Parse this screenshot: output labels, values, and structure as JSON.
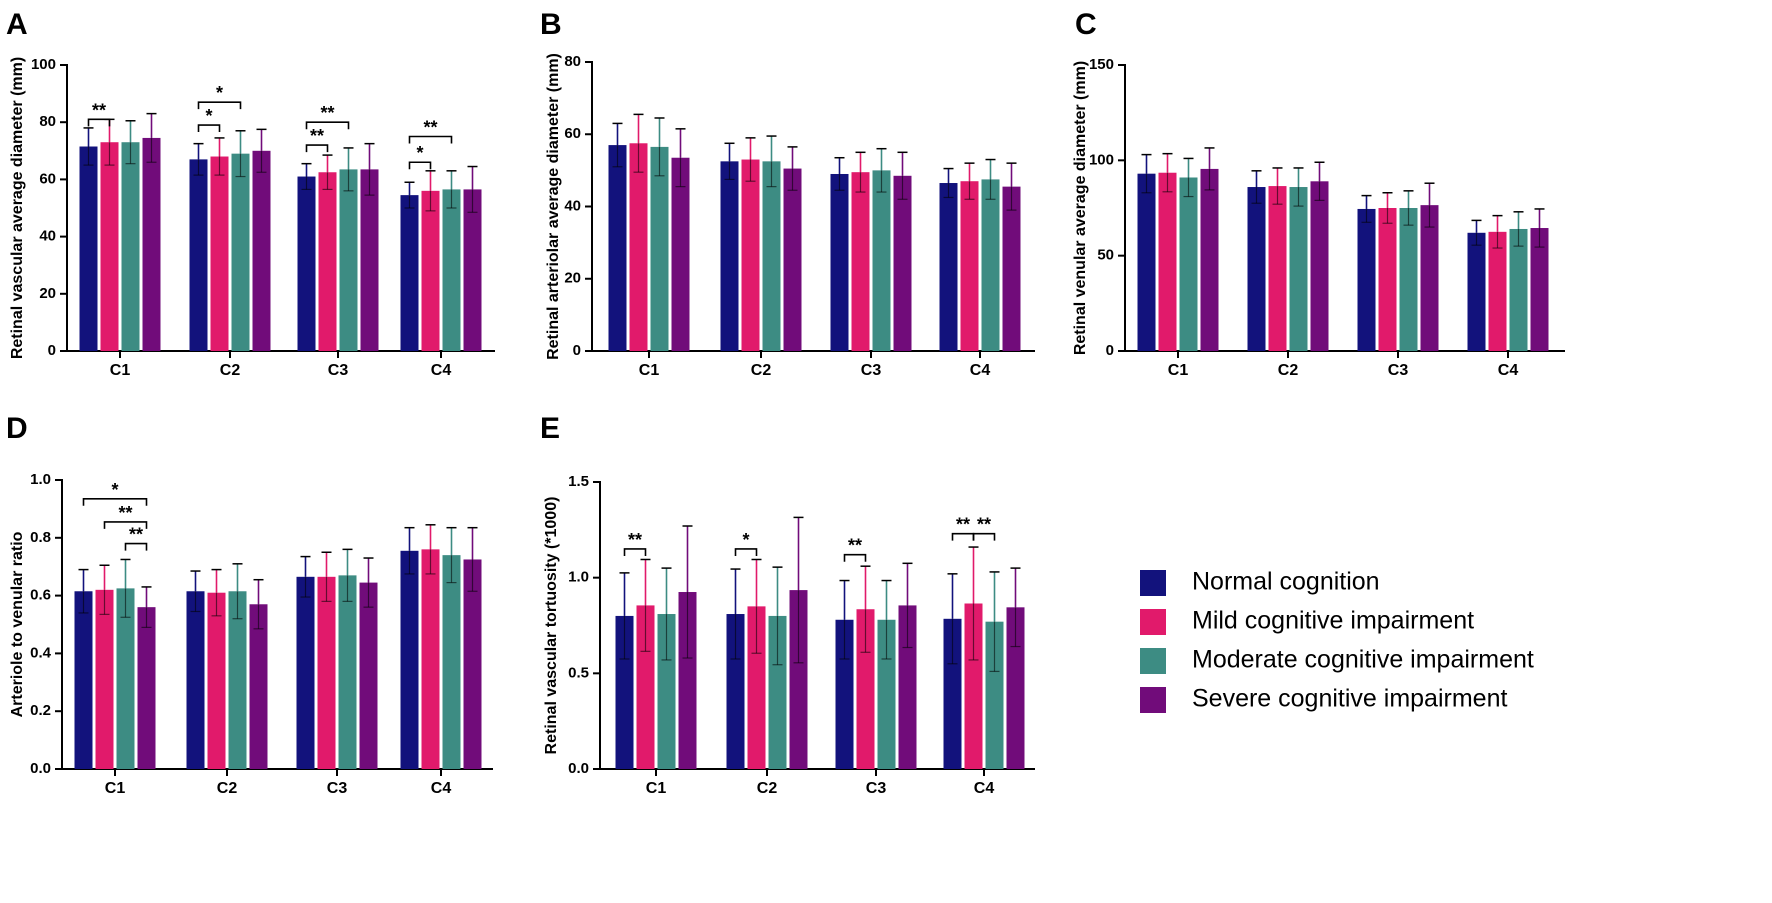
{
  "categories": [
    "C1",
    "C2",
    "C3",
    "C4"
  ],
  "series_names": [
    "Normal cognition",
    "Mild cognitive impairment",
    "Moderate cognitive impairment",
    "Severe cognitive impairment"
  ],
  "colors": [
    "#12127c",
    "#e11a6b",
    "#3d8c83",
    "#710c7a"
  ],
  "chart_data": [
    {
      "type": "bar",
      "panel": "A",
      "ylabel": "Retinal vascular average diameter (mm)",
      "ylim": [
        0,
        100
      ],
      "yticks": [
        0,
        20,
        40,
        60,
        80,
        100
      ],
      "categories": [
        "C1",
        "C2",
        "C3",
        "C4"
      ],
      "series": [
        {
          "name": "Normal cognition",
          "values": [
            71.5,
            67,
            61,
            54.5
          ],
          "errors": [
            6.5,
            5.5,
            4.5,
            4.5
          ]
        },
        {
          "name": "Mild cognitive impairment",
          "values": [
            73,
            68,
            62.5,
            56
          ],
          "errors": [
            8,
            6.5,
            6,
            7
          ]
        },
        {
          "name": "Moderate cognitive impairment",
          "values": [
            73,
            69,
            63.5,
            56.5
          ],
          "errors": [
            7.5,
            8,
            7.5,
            6.5
          ]
        },
        {
          "name": "Severe cognitive impairment",
          "values": [
            74.5,
            70,
            63.5,
            56.5
          ],
          "errors": [
            8.5,
            7.5,
            9,
            8
          ]
        }
      ],
      "significance": [
        {
          "category": "C1",
          "from": 0,
          "to": 1,
          "label": "**",
          "y": 81
        },
        {
          "category": "C2",
          "from": 0,
          "to": 1,
          "label": "*",
          "y": 79
        },
        {
          "category": "C2",
          "from": 0,
          "to": 2,
          "label": "*",
          "y": 87
        },
        {
          "category": "C3",
          "from": 0,
          "to": 1,
          "label": "**",
          "y": 72
        },
        {
          "category": "C3",
          "from": 0,
          "to": 2,
          "label": "**",
          "y": 80
        },
        {
          "category": "C4",
          "from": 0,
          "to": 1,
          "label": "*",
          "y": 66
        },
        {
          "category": "C4",
          "from": 0,
          "to": 2,
          "label": "**",
          "y": 75
        }
      ]
    },
    {
      "type": "bar",
      "panel": "B",
      "ylabel": "Retinal arteriolar average diameter (mm)",
      "ylim": [
        0,
        80
      ],
      "yticks": [
        0,
        20,
        40,
        60,
        80
      ],
      "categories": [
        "C1",
        "C2",
        "C3",
        "C4"
      ],
      "series": [
        {
          "name": "Normal cognition",
          "values": [
            57,
            52.5,
            49,
            46.5
          ],
          "errors": [
            6,
            5,
            4.5,
            4
          ]
        },
        {
          "name": "Mild cognitive impairment",
          "values": [
            57.5,
            53,
            49.5,
            47
          ],
          "errors": [
            8,
            6,
            5.5,
            5
          ]
        },
        {
          "name": "Moderate cognitive impairment",
          "values": [
            56.5,
            52.5,
            50,
            47.5
          ],
          "errors": [
            8,
            7,
            6,
            5.5
          ]
        },
        {
          "name": "Severe cognitive impairment",
          "values": [
            53.5,
            50.5,
            48.5,
            45.5
          ],
          "errors": [
            8,
            6,
            6.5,
            6.5
          ]
        }
      ],
      "significance": []
    },
    {
      "type": "bar",
      "panel": "C",
      "ylabel": "Retinal venular average diameter (mm)",
      "ylim": [
        0,
        150
      ],
      "yticks": [
        0,
        50,
        100,
        150
      ],
      "categories": [
        "C1",
        "C2",
        "C3",
        "C4"
      ],
      "series": [
        {
          "name": "Normal cognition",
          "values": [
            93,
            86,
            74.5,
            62
          ],
          "errors": [
            10,
            8.5,
            7,
            6.5
          ]
        },
        {
          "name": "Mild cognitive impairment",
          "values": [
            93.5,
            86.5,
            75,
            62.5
          ],
          "errors": [
            10,
            9.5,
            8,
            8.5
          ]
        },
        {
          "name": "Moderate cognitive impairment",
          "values": [
            91,
            86,
            75,
            64
          ],
          "errors": [
            10,
            10,
            9,
            9
          ]
        },
        {
          "name": "Severe cognitive impairment",
          "values": [
            95.5,
            89,
            76.5,
            64.5
          ],
          "errors": [
            11,
            10,
            11.5,
            10
          ]
        }
      ],
      "significance": []
    },
    {
      "type": "bar",
      "panel": "D",
      "ylabel": "Arteriole to venular ratio",
      "ylim": [
        0,
        1.0
      ],
      "yticks": [
        0,
        0.2,
        0.4,
        0.6,
        0.8,
        1.0
      ],
      "ytick_labels": [
        "0.0",
        "0.2",
        "0.4",
        "0.6",
        "0.8",
        "1.0"
      ],
      "categories": [
        "C1",
        "C2",
        "C3",
        "C4"
      ],
      "series": [
        {
          "name": "Normal cognition",
          "values": [
            0.615,
            0.615,
            0.665,
            0.755
          ],
          "errors": [
            0.075,
            0.07,
            0.07,
            0.08
          ]
        },
        {
          "name": "Mild cognitive impairment",
          "values": [
            0.62,
            0.61,
            0.665,
            0.76
          ],
          "errors": [
            0.085,
            0.08,
            0.085,
            0.085
          ]
        },
        {
          "name": "Moderate cognitive impairment",
          "values": [
            0.625,
            0.615,
            0.67,
            0.74
          ],
          "errors": [
            0.1,
            0.095,
            0.09,
            0.095
          ]
        },
        {
          "name": "Severe cognitive impairment",
          "values": [
            0.56,
            0.57,
            0.645,
            0.725
          ],
          "errors": [
            0.07,
            0.085,
            0.085,
            0.11
          ]
        }
      ],
      "significance": [
        {
          "category": "C1",
          "from": 0,
          "to": 3,
          "label": "*",
          "y": 0.935
        },
        {
          "category": "C1",
          "from": 1,
          "to": 3,
          "label": "**",
          "y": 0.855
        },
        {
          "category": "C1",
          "from": 2,
          "to": 3,
          "label": "**",
          "y": 0.78
        }
      ]
    },
    {
      "type": "bar",
      "panel": "E",
      "ylabel": "Retinal vascular tortuosity (*1000)",
      "ylim": [
        0,
        1.5
      ],
      "yticks": [
        0,
        0.5,
        1.0,
        1.5
      ],
      "ytick_labels": [
        "0.0",
        "0.5",
        "1.0",
        "1.5"
      ],
      "categories": [
        "C1",
        "C2",
        "C3",
        "C4"
      ],
      "series": [
        {
          "name": "Normal cognition",
          "values": [
            0.8,
            0.81,
            0.78,
            0.785
          ],
          "errors": [
            0.225,
            0.235,
            0.205,
            0.235
          ]
        },
        {
          "name": "Mild cognitive impairment",
          "values": [
            0.855,
            0.85,
            0.835,
            0.865
          ],
          "errors": [
            0.24,
            0.245,
            0.225,
            0.295
          ]
        },
        {
          "name": "Moderate cognitive impairment",
          "values": [
            0.81,
            0.8,
            0.78,
            0.77
          ],
          "errors": [
            0.24,
            0.255,
            0.205,
            0.26
          ]
        },
        {
          "name": "Severe cognitive impairment",
          "values": [
            0.925,
            0.935,
            0.855,
            0.845
          ],
          "errors": [
            0.345,
            0.38,
            0.22,
            0.205
          ]
        }
      ],
      "significance": [
        {
          "category": "C1",
          "from": 0,
          "to": 1,
          "label": "**",
          "y": 1.15
        },
        {
          "category": "C2",
          "from": 0,
          "to": 1,
          "label": "*",
          "y": 1.15
        },
        {
          "category": "C3",
          "from": 0,
          "to": 1,
          "label": "**",
          "y": 1.12
        },
        {
          "category": "C4",
          "from": 0,
          "to": 1,
          "label": "**",
          "y": 1.23
        },
        {
          "category": "C4",
          "from": 1,
          "to": 2,
          "label": "**",
          "y": 1.23
        }
      ]
    }
  ],
  "legend": {
    "items": [
      "Normal cognition",
      "Mild cognitive impairment",
      "Moderate cognitive impairment",
      "Severe cognitive impairment"
    ]
  }
}
